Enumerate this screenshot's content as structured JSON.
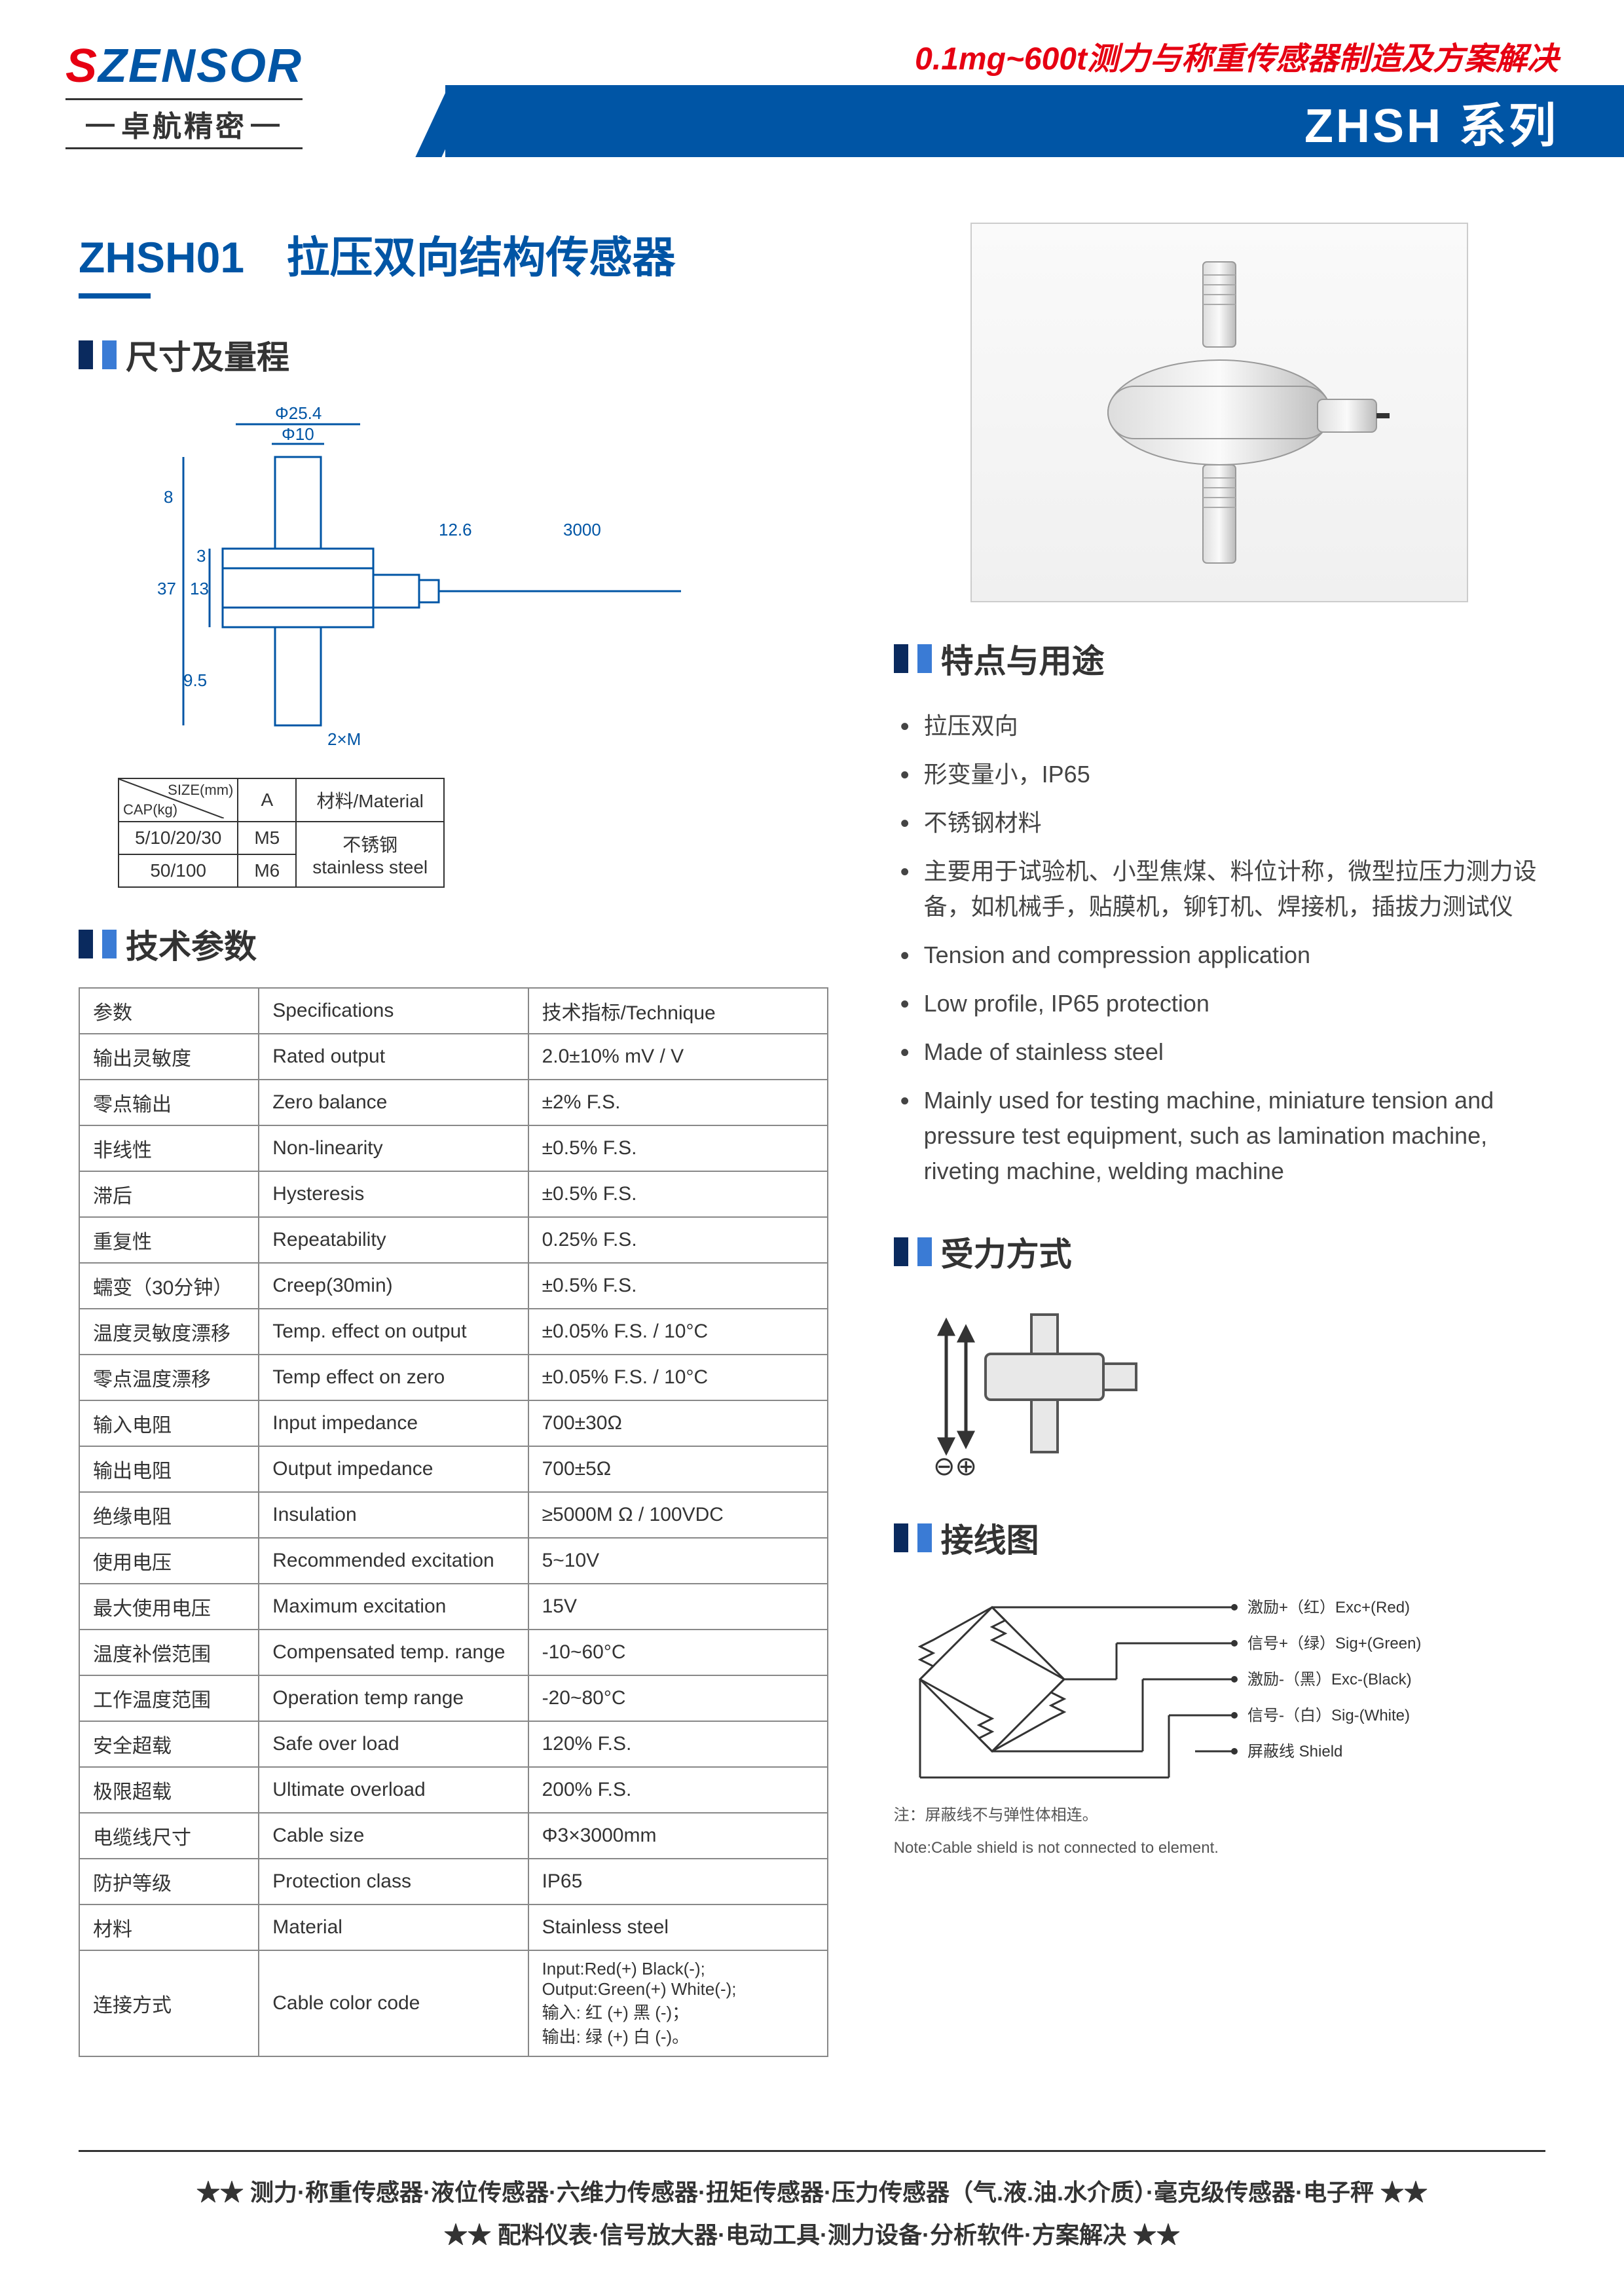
{
  "header": {
    "logo_s": "S",
    "logo_rest": "ZENSOR",
    "logo_sub": "卓航精密",
    "tagline": "0.1mg~600t测力与称重传感器制造及方案解决",
    "series": "ZHSH 系列"
  },
  "title": {
    "code": "ZHSH01",
    "name": "拉压双向结构传感器"
  },
  "sections": {
    "dimensions": "尺寸及量程",
    "specs": "技术参数",
    "features": "特点与用途",
    "force": "受力方式",
    "wiring": "接线图"
  },
  "dim_labels": {
    "d1": "Φ25.4",
    "d2": "Φ10",
    "h1": "8",
    "h2": "3",
    "h3": "13",
    "h4": "37",
    "h5": "9.5",
    "l1": "12.6",
    "l2": "3000",
    "thread": "2×M"
  },
  "size_table": {
    "head": [
      "CAP(kg)",
      "A",
      "材料/Material"
    ],
    "diag": "SIZE(mm)",
    "rows": [
      [
        "5/10/20/30",
        "M5"
      ],
      [
        "50/100",
        "M6"
      ]
    ],
    "material": "不锈钢\nstainless steel"
  },
  "spec_table": {
    "head": [
      "参数",
      "Specifications",
      "技术指标/Technique"
    ],
    "rows": [
      [
        "输出灵敏度",
        "Rated output",
        "2.0±10%  mV / V"
      ],
      [
        "零点输出",
        "Zero balance",
        "±2% F.S."
      ],
      [
        "非线性",
        "Non-linearity",
        "±0.5% F.S."
      ],
      [
        "滞后",
        "Hysteresis",
        "±0.5% F.S."
      ],
      [
        "重复性",
        "Repeatability",
        "0.25% F.S."
      ],
      [
        "蠕变（30分钟）",
        "Creep(30min)",
        "±0.5% F.S."
      ],
      [
        "温度灵敏度漂移",
        "Temp. effect on output",
        "±0.05% F.S. / 10°C"
      ],
      [
        "零点温度漂移",
        "Temp effect on zero",
        "±0.05% F.S. / 10°C"
      ],
      [
        "输入电阻",
        "Input impedance",
        "700±30Ω"
      ],
      [
        "输出电阻",
        "Output impedance",
        "700±5Ω"
      ],
      [
        "绝缘电阻",
        "Insulation",
        "≥5000M Ω / 100VDC"
      ],
      [
        "使用电压",
        "Recommended excitation",
        "5~10V"
      ],
      [
        "最大使用电压",
        "Maximum excitation",
        "15V"
      ],
      [
        "温度补偿范围",
        "Compensated temp. range",
        "-10~60°C"
      ],
      [
        "工作温度范围",
        "Operation temp range",
        "-20~80°C"
      ],
      [
        "安全超载",
        "Safe over load",
        "120% F.S."
      ],
      [
        "极限超载",
        "Ultimate overload",
        "200% F.S."
      ],
      [
        "电缆线尺寸",
        "Cable size",
        "Φ3×3000mm"
      ],
      [
        "防护等级",
        "Protection class",
        "IP65"
      ],
      [
        "材料",
        "Material",
        "Stainless steel"
      ]
    ],
    "last_row": {
      "c1": "连接方式",
      "c2": "Cable color code",
      "c3": "Input:Red(+)          Black(-);\nOutput:Green(+)     White(-);\n输入: 红 (+)               黑 (-)；\n输出: 绿 (+)               白 (-)。"
    }
  },
  "features": [
    "拉压双向",
    "形变量小，IP65",
    "不锈钢材料",
    "主要用于试验机、小型焦煤、料位计称，微型拉压力测力设备，如机械手，贴膜机，铆钉机、焊接机，插拔力测试仪",
    "Tension and compression application",
    "Low profile, IP65 protection",
    "Made of stainless steel",
    "Mainly used for testing machine, miniature tension and pressure test equipment, such as lamination machine, riveting machine, welding machine"
  ],
  "force_symbols": {
    "plusminus": "⊖⊕"
  },
  "wiring": {
    "lines": [
      "激励+（红）Exc+(Red)",
      "信号+（绿）Sig+(Green)",
      "激励-（黑）Exc-(Black)",
      "信号-（白）Sig-(White)",
      "屏蔽线 Shield"
    ],
    "note1": "注：屏蔽线不与弹性体相连。",
    "note2": "Note:Cable shield is not connected to element."
  },
  "footer": {
    "line1": "★★ 测力·称重传感器·液位传感器·六维力传感器·扭矩传感器·压力传感器（气.液.油.水介质）·毫克级传感器·电子秤 ★★",
    "line2": "★★ 配料仪表·信号放大器·电动工具·测力设备·分析软件·方案解决 ★★"
  },
  "colors": {
    "brand_blue": "#0055a5",
    "brand_red": "#e60012",
    "text": "#333333",
    "border": "#888888"
  }
}
